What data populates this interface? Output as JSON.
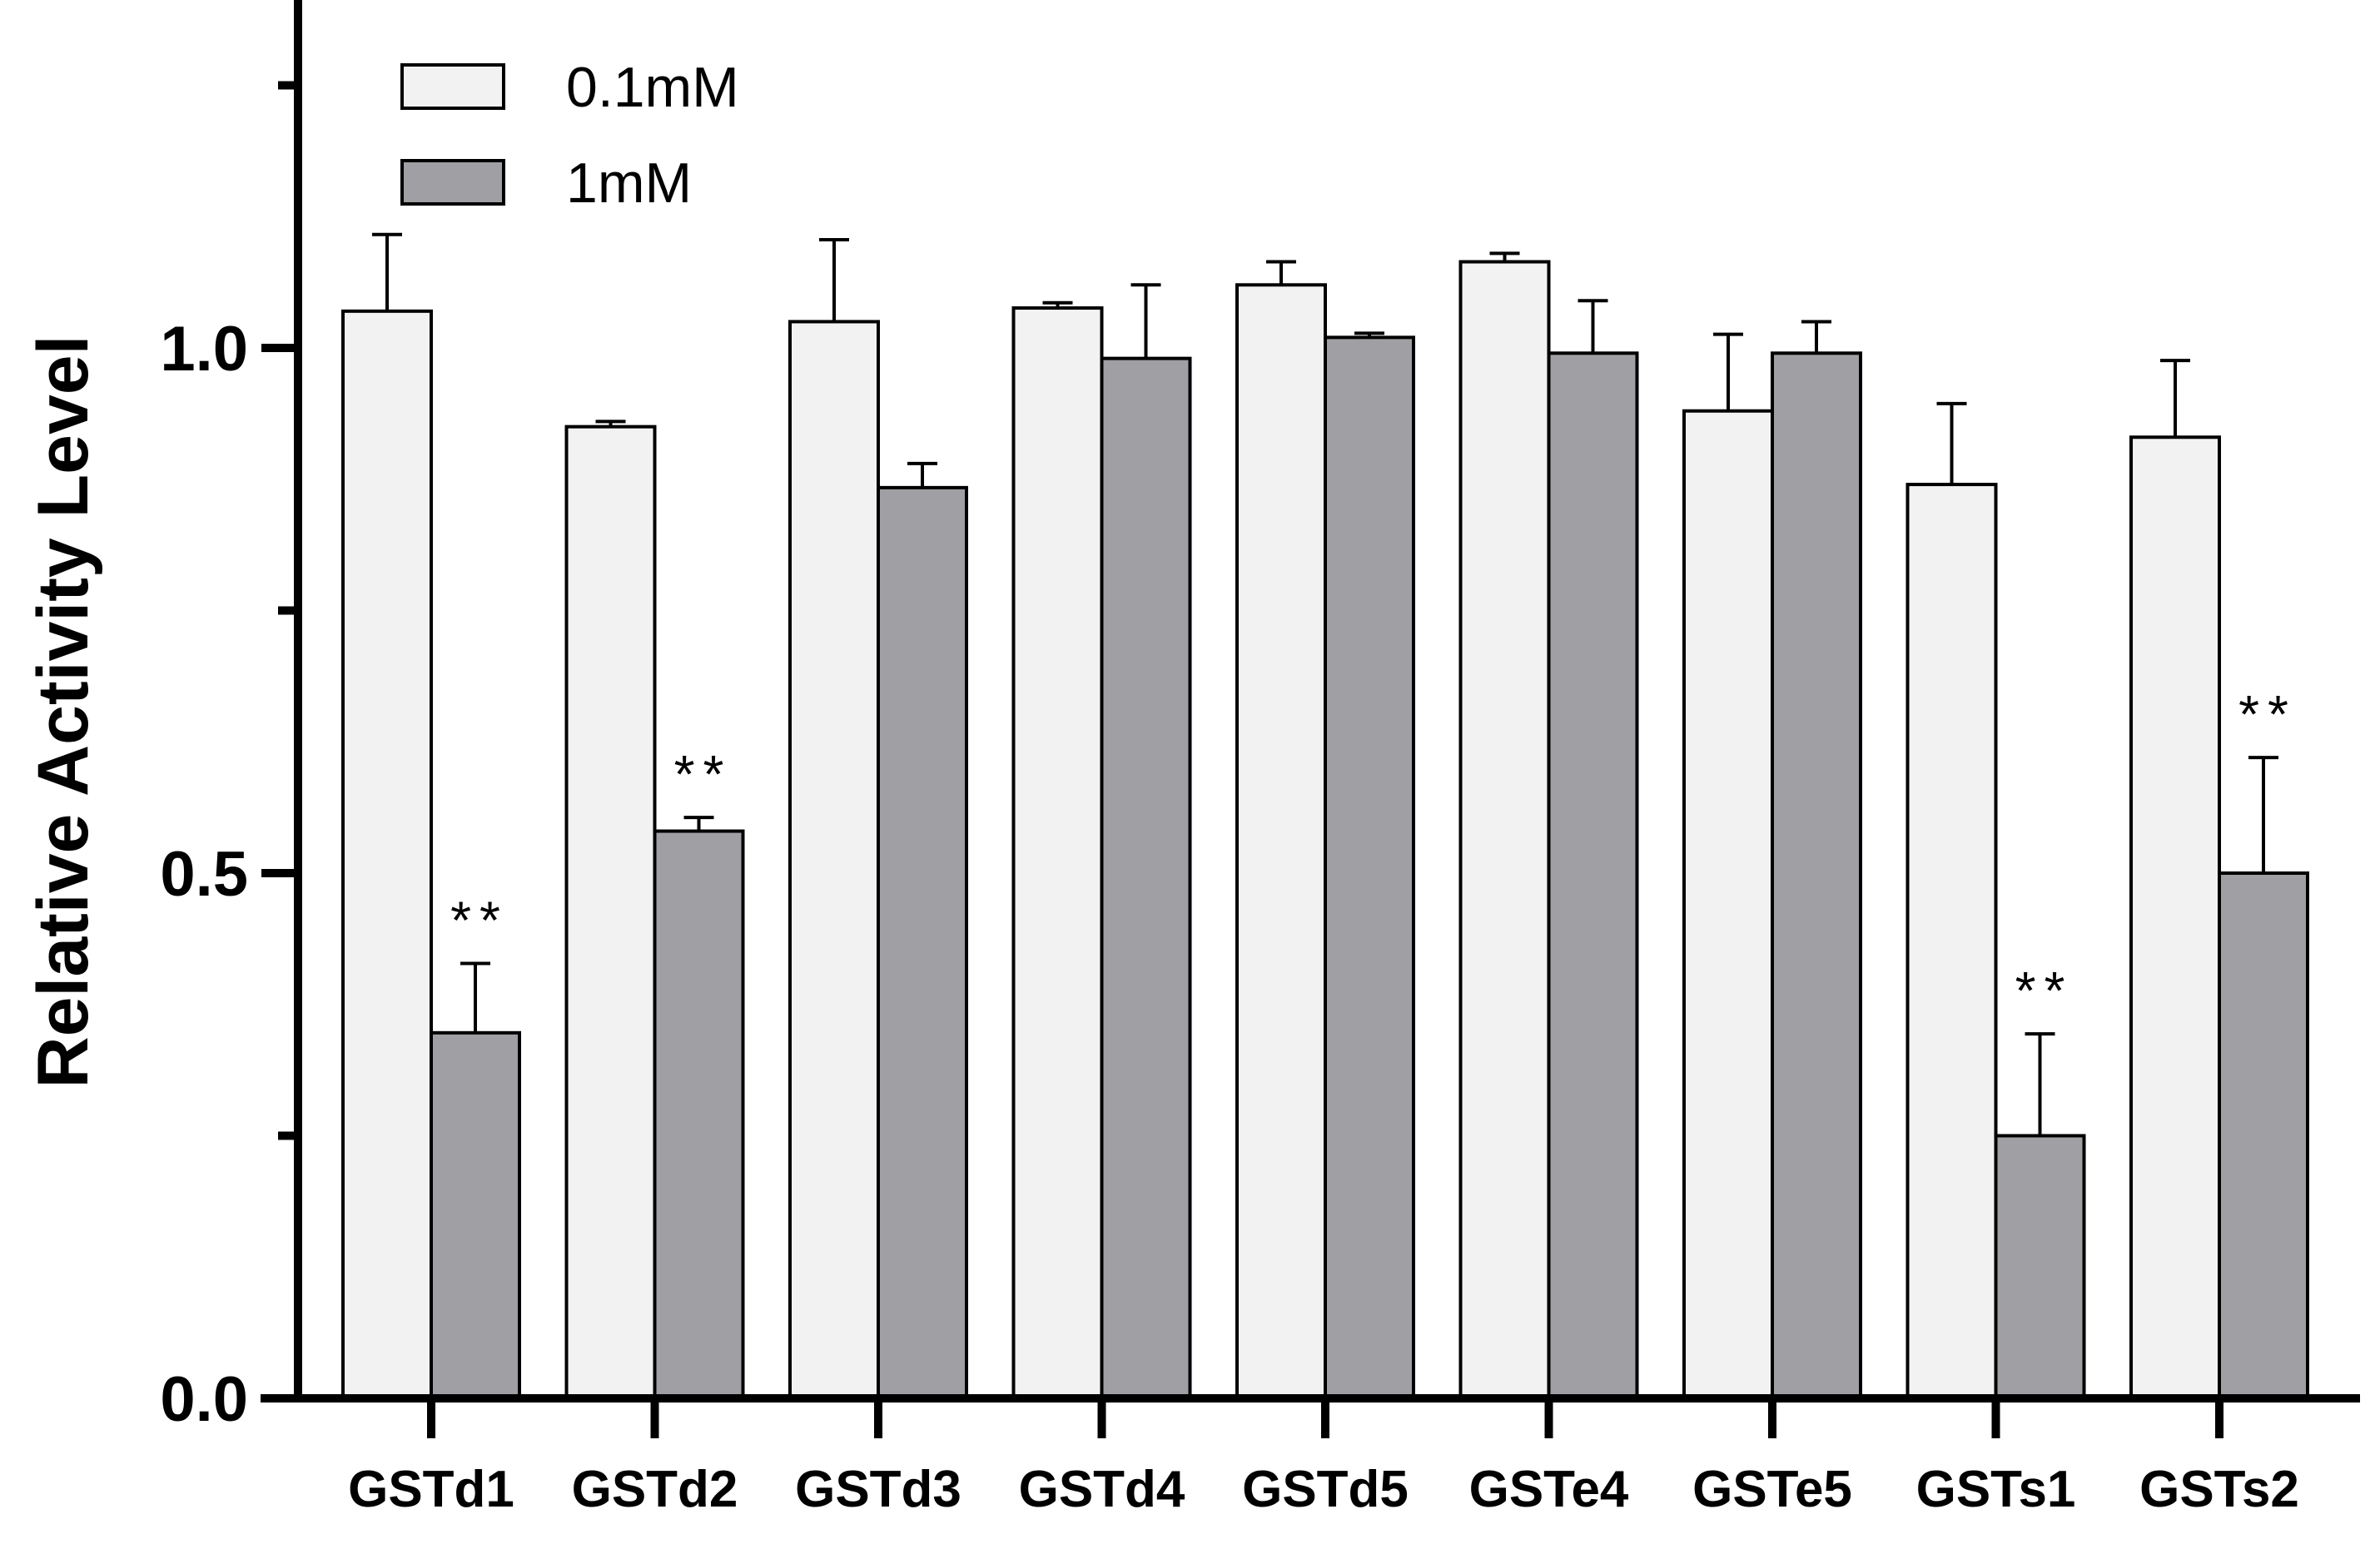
{
  "chart_data": {
    "type": "bar",
    "title": "",
    "xlabel": "",
    "ylabel": "Relative Activity Level",
    "ylim": [
      0,
      1.3
    ],
    "yticks": [
      0.0,
      0.5,
      1.0
    ],
    "ytick_labels": [
      "0.0",
      "0.5",
      "1.0"
    ],
    "legend_position": "top-left",
    "categories": [
      "GSTd1",
      "GSTd2",
      "GSTd3",
      "GSTd4",
      "GSTd5",
      "GSTe4",
      "GSTe5",
      "GSTs1",
      "GSTs2"
    ],
    "series": [
      {
        "name": "0.1mM",
        "color": "#f2f2f2",
        "values": [
          1.035,
          0.925,
          1.025,
          1.038,
          1.06,
          1.082,
          0.94,
          0.87,
          0.915
        ],
        "errors": [
          0.073,
          0.005,
          0.078,
          0.005,
          0.022,
          0.008,
          0.073,
          0.077,
          0.073
        ]
      },
      {
        "name": "1mM",
        "color": "#a09fa4",
        "values": [
          0.348,
          0.54,
          0.867,
          0.99,
          1.01,
          0.995,
          0.995,
          0.25,
          0.5
        ],
        "errors": [
          0.066,
          0.013,
          0.023,
          0.07,
          0.004,
          0.05,
          0.03,
          0.097,
          0.11
        ]
      }
    ],
    "annotations": [
      {
        "category": "GSTd1",
        "series": "1mM",
        "text": "**"
      },
      {
        "category": "GSTd2",
        "series": "1mM",
        "text": "**"
      },
      {
        "category": "GSTs1",
        "series": "1mM",
        "text": "**"
      },
      {
        "category": "GSTs2",
        "series": "1mM",
        "text": "**"
      }
    ]
  }
}
